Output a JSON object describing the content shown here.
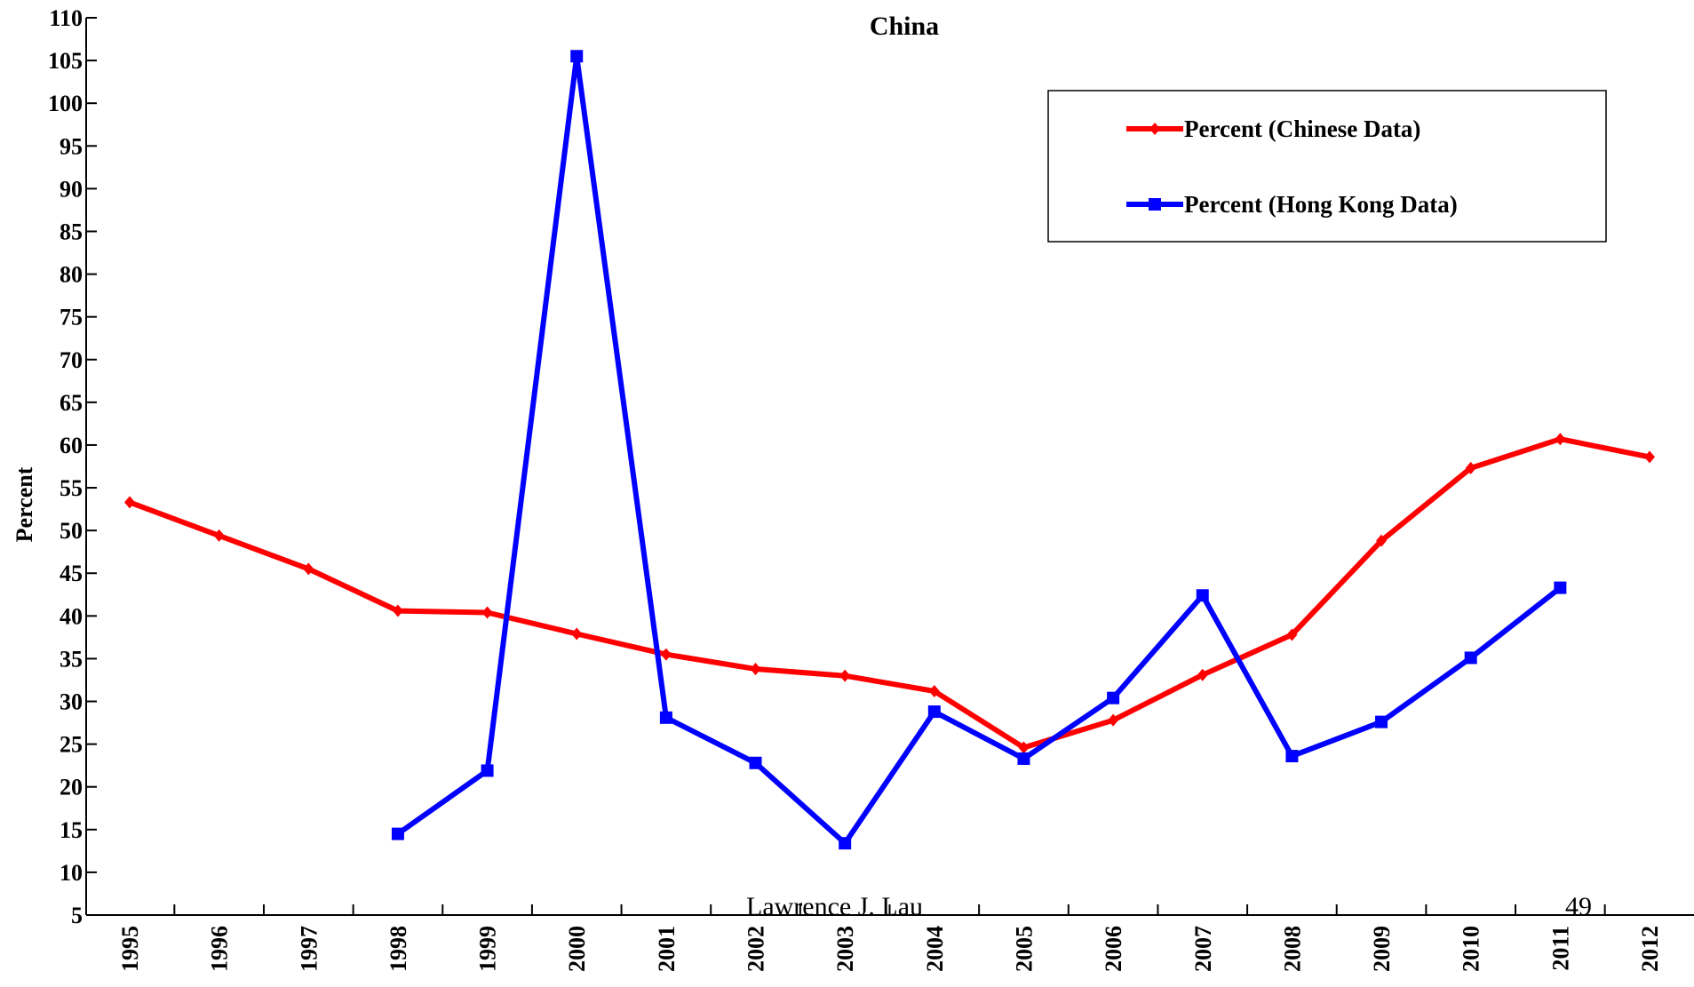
{
  "chart_data": {
    "type": "line",
    "title": "China",
    "ylabel": "Percent",
    "xlabel": "",
    "ylim": [
      5,
      110
    ],
    "ytick_step": 5,
    "categories": [
      "1995",
      "1996",
      "1997",
      "1998",
      "1999",
      "2000",
      "2001",
      "2002",
      "2003",
      "2004",
      "2005",
      "2006",
      "2007",
      "2008",
      "2009",
      "2010",
      "2011",
      "2012"
    ],
    "legend_position": "top-right",
    "grid": false,
    "series": [
      {
        "name": "Percent (Chinese Data)",
        "color": "#ff0000",
        "marker": "diamond",
        "values": [
          53.3,
          49.4,
          45.5,
          40.6,
          40.4,
          37.9,
          35.5,
          33.8,
          33.0,
          31.2,
          24.6,
          27.8,
          33.1,
          37.8,
          48.8,
          57.3,
          60.7,
          58.6
        ]
      },
      {
        "name": "Percent (Hong Kong Data)",
        "color": "#0000ff",
        "marker": "square",
        "values": [
          null,
          null,
          null,
          14.5,
          21.9,
          105.5,
          28.1,
          22.8,
          13.4,
          28.8,
          23.3,
          30.4,
          42.4,
          23.6,
          27.6,
          35.1,
          43.3,
          null
        ]
      }
    ]
  },
  "footer": {
    "author": "Lawrence J. Lau",
    "page_number": "49"
  }
}
